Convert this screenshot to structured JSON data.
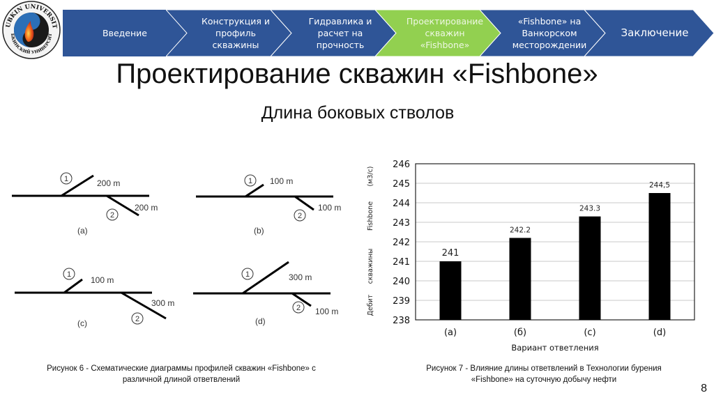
{
  "logo": {
    "top_text": "GUBKIN UNIVERSITY",
    "bottom_text": "ГУБКИНСКИЙ УНИВЕРСИТЕТ"
  },
  "nav": {
    "steps": [
      {
        "label": "Введение",
        "active": false
      },
      {
        "label": "Конструкция и\nпрофиль\nскважины",
        "active": false
      },
      {
        "label": "Гидравлика и\nрасчет на\nпрочность",
        "active": false
      },
      {
        "label": "Проектирование\nскважин\n«Fishbone»",
        "active": true
      },
      {
        "label": "«Fishbone» на\nВанкорском\nместорождении",
        "active": false
      },
      {
        "label": "Заключение",
        "active": false
      }
    ],
    "colors": {
      "inactive": "#2f5597",
      "active": "#92d050"
    }
  },
  "title": "Проектирование скважин «Fishbone»",
  "subtitle": "Длина боковых стволов",
  "schematics": [
    {
      "label": "(a)",
      "branch1": "200 m",
      "branch2": "200 m",
      "num1": "1",
      "num2": "2"
    },
    {
      "label": "(b)",
      "branch1": "100 m",
      "branch2": "100 m",
      "num1": "1",
      "num2": "2"
    },
    {
      "label": "(c)",
      "branch1": "100 m",
      "branch2": "300 m",
      "num1": "1",
      "num2": "2"
    },
    {
      "label": "(d)",
      "branch1": "300 m",
      "branch2": "100 m",
      "num1": "1",
      "num2": "2"
    }
  ],
  "caption_left": "Рисунок 6 - Схематические диаграммы профилей скважин «Fishbone» с\nразличной длиной ответвлений",
  "caption_right": "Рисунок 7 - Влияние длины ответвлений в Технологии бурения\n«Fishbone» на суточную добычу нефти",
  "page_number": "8",
  "chart_data": {
    "type": "bar",
    "title": "",
    "categories": [
      "(a)",
      "(б)",
      "(c)",
      "(d)"
    ],
    "values": [
      241,
      242.2,
      243.3,
      244.5
    ],
    "data_labels": [
      "241",
      "242.2",
      "243.3",
      "244,5"
    ],
    "xlabel": "Вариант ответления",
    "ylabel": "Дебит скважины Fishbone (м3/с)",
    "ylabel_parts": [
      "Дебит",
      "скважины",
      "Fishbone",
      "(м3/с)"
    ],
    "ylim": [
      238,
      246
    ],
    "yticks": [
      "238",
      "239",
      "240",
      "241",
      "242",
      "243",
      "244",
      "245",
      "246"
    ],
    "grid": true,
    "legend": "none",
    "bar_color": "#000000"
  }
}
